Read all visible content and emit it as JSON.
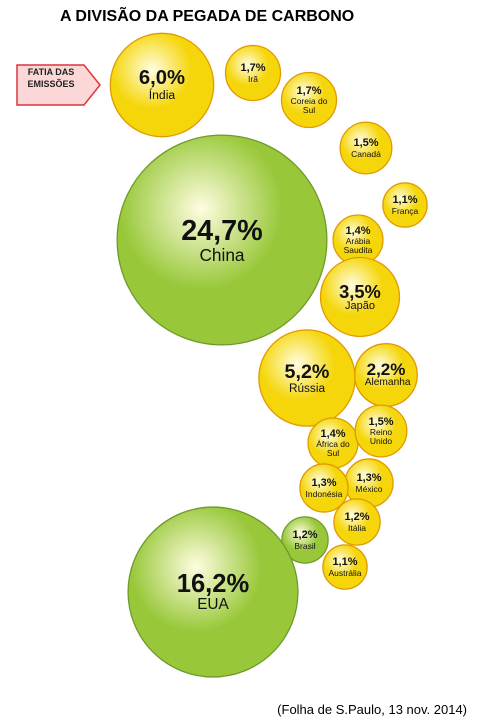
{
  "chart_data": {
    "type": "bubble",
    "title": "A DIVISÃO DA PEGADA DE CARBONO",
    "legend_label": "FATIA DAS EMISSÕES",
    "source": "(Folha de S.Paulo, 13 nov. 2014)",
    "categories": [
      "Índia",
      "Irã",
      "Coreia do Sul",
      "Canadá",
      "França",
      "Arábia Saudita",
      "China",
      "Japão",
      "Rússia",
      "Alemanha",
      "África do Sul",
      "Reino Unido",
      "México",
      "Indonésia",
      "Itália",
      "Brasil",
      "Austrália",
      "EUA"
    ],
    "values": [
      6.0,
      1.7,
      1.7,
      1.5,
      1.1,
      1.4,
      24.7,
      3.5,
      5.2,
      2.2,
      1.4,
      1.5,
      1.3,
      1.3,
      1.2,
      1.2,
      1.1,
      16.2
    ],
    "value_labels": [
      "6,0%",
      "1,7%",
      "1,7%",
      "1,5%",
      "1,1%",
      "1,4%",
      "24,7%",
      "3,5%",
      "5,2%",
      "2,2%",
      "1,4%",
      "1,5%",
      "1,3%",
      "1,3%",
      "1,2%",
      "1,2%",
      "1,1%",
      "16,2%"
    ],
    "colors": [
      "#f5d60a",
      "#f5d60a",
      "#f5d60a",
      "#f5d60a",
      "#f5d60a",
      "#f5d60a",
      "#98c83a",
      "#f5d60a",
      "#f5d60a",
      "#f5d60a",
      "#f5d60a",
      "#f5d60a",
      "#f5d60a",
      "#f5d60a",
      "#f5d60a",
      "#98c83a",
      "#f5d60a",
      "#98c83a"
    ]
  }
}
